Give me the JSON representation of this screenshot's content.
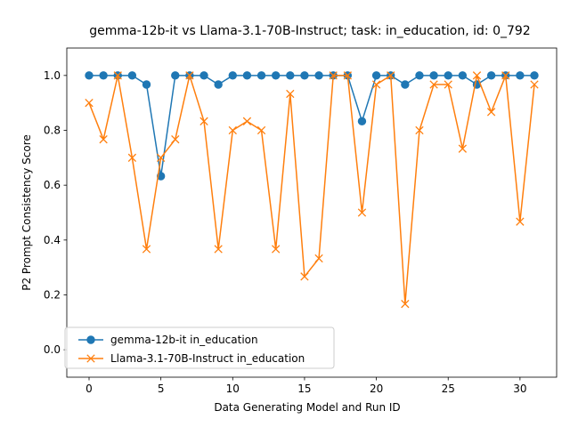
{
  "chart_data": {
    "type": "line",
    "title": "gemma-12b-it vs Llama-3.1-70B-Instruct; task: in_education, id: 0_792",
    "xlabel": "Data Generating Model and Run ID",
    "ylabel": "P2 Prompt Consistency Score",
    "xlim": [
      -1.55,
      32.55
    ],
    "ylim": [
      -0.1,
      1.1
    ],
    "xticks": [
      0,
      5,
      10,
      15,
      20,
      25,
      30
    ],
    "yticks": [
      0.0,
      0.2,
      0.4,
      0.6,
      0.8,
      1.0
    ],
    "ytick_labels": [
      "0.0",
      "0.2",
      "0.4",
      "0.6",
      "0.8",
      "1.0"
    ],
    "grid": false,
    "legend_position": "lower left",
    "x": [
      0,
      1,
      2,
      3,
      4,
      5,
      6,
      7,
      8,
      9,
      10,
      11,
      12,
      13,
      14,
      15,
      16,
      17,
      18,
      19,
      20,
      21,
      22,
      23,
      24,
      25,
      26,
      27,
      28,
      29,
      30,
      31
    ],
    "series": [
      {
        "name": "gemma-12b-it in_education",
        "color": "#1f77b4",
        "marker": "circle",
        "values": [
          1.0,
          1.0,
          1.0,
          1.0,
          0.967,
          0.633,
          1.0,
          1.0,
          1.0,
          0.967,
          1.0,
          1.0,
          1.0,
          1.0,
          1.0,
          1.0,
          1.0,
          1.0,
          1.0,
          0.833,
          1.0,
          1.0,
          0.967,
          1.0,
          1.0,
          1.0,
          1.0,
          0.967,
          1.0,
          1.0,
          1.0,
          1.0
        ]
      },
      {
        "name": "Llama-3.1-70B-Instruct in_education",
        "color": "#ff7f0e",
        "marker": "x",
        "values": [
          0.9,
          0.767,
          1.0,
          0.7,
          0.367,
          0.7,
          0.767,
          1.0,
          0.833,
          0.367,
          0.8,
          0.833,
          0.8,
          0.367,
          0.933,
          0.267,
          0.333,
          1.0,
          1.0,
          0.5,
          0.967,
          1.0,
          0.167,
          0.8,
          0.967,
          0.967,
          0.733,
          1.0,
          0.867,
          1.0,
          0.467,
          0.967
        ]
      }
    ]
  }
}
